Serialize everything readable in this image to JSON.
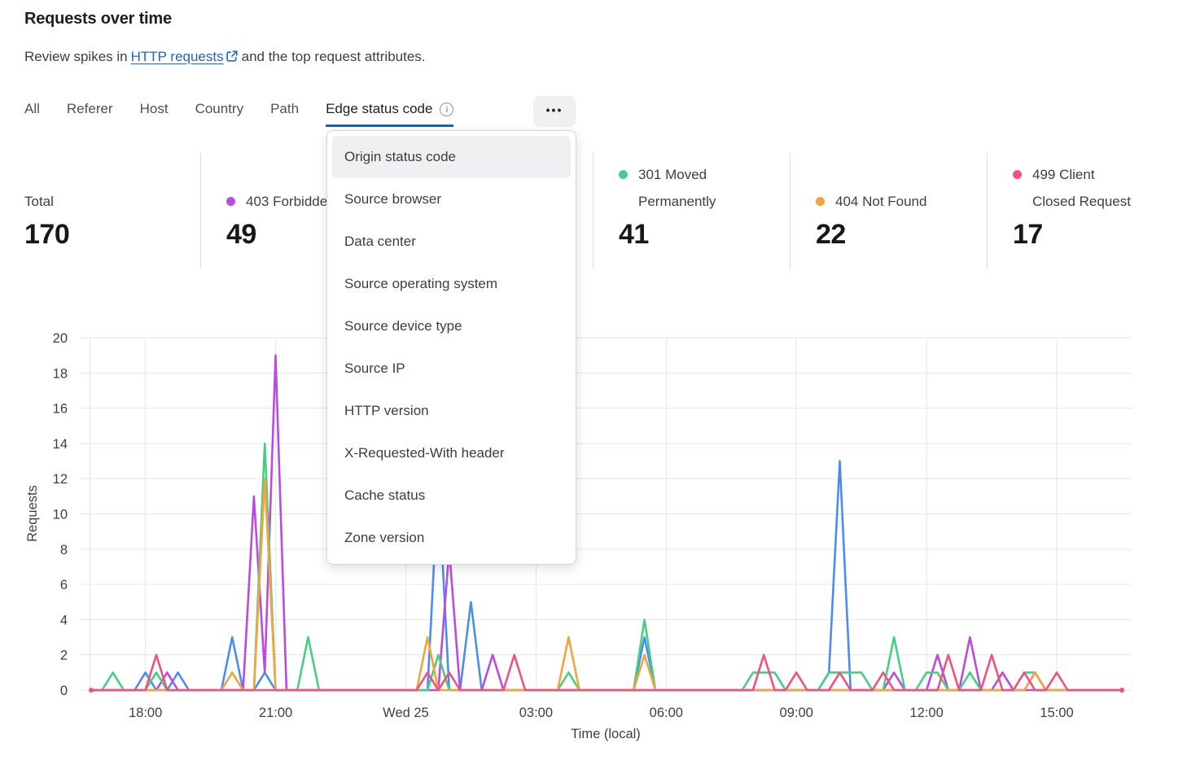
{
  "header": {
    "title": "Requests over time",
    "subtitle_prefix": "Review spikes in",
    "link_text": "HTTP requests",
    "subtitle_suffix": "and the top request attributes.",
    "info_icon": "i",
    "more_label": "•••"
  },
  "tabs": {
    "items": [
      "All",
      "Referer",
      "Host",
      "Country",
      "Path",
      "Edge status code"
    ],
    "active_index": 5
  },
  "menu": {
    "highlighted_index": 0,
    "items": [
      "Origin status code",
      "Source browser",
      "Data center",
      "Source operating system",
      "Source device type",
      "Source IP",
      "HTTP version",
      "X-Requested-With header",
      "Cache status",
      "Zone version"
    ]
  },
  "stats": [
    {
      "label": "Total",
      "value": "170",
      "color": null
    },
    {
      "label": "403 Forbidden",
      "value": "49",
      "color": "#ba4be0"
    },
    {
      "label": "301 Moved Permanently",
      "value": "41",
      "color": "#46cf82"
    },
    {
      "label": "404 Not Found",
      "value": "22",
      "color": "#f5a33c"
    },
    {
      "label": "499 Client Closed Request",
      "value": "17",
      "color": "#f0517f"
    }
  ],
  "chart_data": {
    "type": "line",
    "title": "Requests over time",
    "xlabel": "Time (local)",
    "ylabel": "Requests",
    "ylim": [
      0,
      20
    ],
    "y_ticks": [
      0,
      2,
      4,
      6,
      8,
      10,
      12,
      14,
      16,
      18,
      20
    ],
    "grid": true,
    "n_points": 96,
    "minutes_per_point": 15,
    "baseline_value": 0,
    "x_tick_marks": [
      {
        "index": 5,
        "label": "18:00"
      },
      {
        "index": 17,
        "label": "21:00"
      },
      {
        "index": 29,
        "label": "Wed 25"
      },
      {
        "index": 41,
        "label": "03:00"
      },
      {
        "index": 53,
        "label": "06:00"
      },
      {
        "index": 65,
        "label": "09:00"
      },
      {
        "index": 77,
        "label": "12:00"
      },
      {
        "index": 89,
        "label": "15:00"
      }
    ],
    "series": [
      {
        "name": "(legend hidden behind menu)",
        "color": "#4a8cf0",
        "spikes": {
          "5": 1,
          "8": 1,
          "13": 3,
          "16": 1,
          "32": 12,
          "35": 5,
          "51": 3,
          "68": 1,
          "69": 13,
          "87": 1
        }
      },
      {
        "name": "403 Forbidden",
        "color": "#ba4be0",
        "spikes": {
          "7": 1,
          "15": 11,
          "16": 1,
          "17": 19,
          "33": 8,
          "37": 2,
          "74": 1,
          "78": 2,
          "81": 3,
          "84": 1
        }
      },
      {
        "name": "301 Moved Permanently",
        "color": "#46cf82",
        "spikes": {
          "2": 1,
          "6": 1,
          "16": 14,
          "20": 3,
          "32": 2,
          "44": 1,
          "51": 4,
          "61": 1,
          "62": 1,
          "63": 1,
          "68": 1,
          "69": 1,
          "70": 1,
          "71": 1,
          "74": 3,
          "77": 1,
          "78": 1,
          "81": 1,
          "86": 1,
          "87": 1
        }
      },
      {
        "name": "404 Not Found",
        "color": "#f5a33c",
        "spikes": {
          "13": 1,
          "16": 12,
          "31": 3,
          "44": 3,
          "51": 2,
          "87": 1
        }
      },
      {
        "name": "499 Client Closed Request",
        "color": "#f0517f",
        "spikes": {
          "6": 2,
          "31": 1,
          "33": 1,
          "39": 2,
          "62": 2,
          "65": 1,
          "69": 1,
          "73": 1,
          "79": 2,
          "83": 2,
          "86": 1,
          "89": 1
        }
      }
    ]
  }
}
